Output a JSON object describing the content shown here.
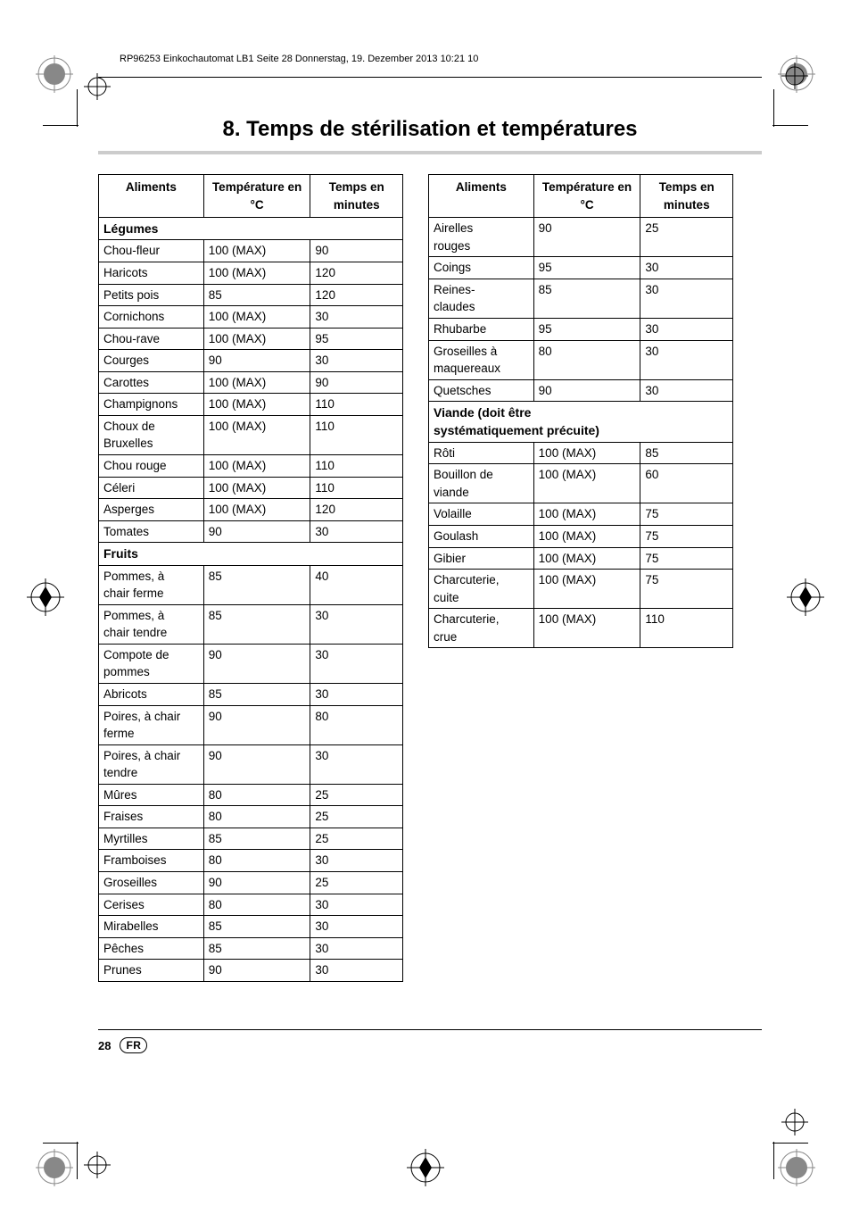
{
  "printmeta": {
    "header": "RP96253 Einkochautomat LB1  Seite 28  Donnerstag, 19. Dezember 2013  10:21 10"
  },
  "title": "8. Temps de stérilisation et températures",
  "columns": {
    "aliments": "Aliments",
    "temperature": "Température\nen °C",
    "temps": "Temps en\nminutes"
  },
  "sections": {
    "legumes": "Légumes",
    "fruits": "Fruits",
    "viande": "Viande (doit être\nsystématiquement précuite)"
  },
  "table_left": [
    {
      "section": "legumes"
    },
    {
      "a": "Chou-fleur",
      "t": "100 (MAX)",
      "m": "90"
    },
    {
      "a": "Haricots",
      "t": "100 (MAX)",
      "m": "120"
    },
    {
      "a": "Petits pois",
      "t": "85",
      "m": "120"
    },
    {
      "a": "Cornichons",
      "t": "100 (MAX)",
      "m": "30"
    },
    {
      "a": "Chou-rave",
      "t": "100 (MAX)",
      "m": "95"
    },
    {
      "a": "Courges",
      "t": "90",
      "m": "30"
    },
    {
      "a": "Carottes",
      "t": "100 (MAX)",
      "m": "90"
    },
    {
      "a": "Champignons",
      "t": "100 (MAX)",
      "m": "110"
    },
    {
      "a": "Choux de\nBruxelles",
      "t": "100 (MAX)",
      "m": "110"
    },
    {
      "a": "Chou rouge",
      "t": "100 (MAX)",
      "m": "110"
    },
    {
      "a": "Céleri",
      "t": "100 (MAX)",
      "m": "110"
    },
    {
      "a": "Asperges",
      "t": "100 (MAX)",
      "m": "120"
    },
    {
      "a": "Tomates",
      "t": "90",
      "m": "30"
    },
    {
      "section": "fruits"
    },
    {
      "a": "Pommes, à\nchair ferme",
      "t": "85",
      "m": "40"
    },
    {
      "a": "Pommes, à\nchair tendre",
      "t": "85",
      "m": "30"
    },
    {
      "a": "Compote de\npommes",
      "t": "90",
      "m": "30"
    },
    {
      "a": "Abricots",
      "t": "85",
      "m": "30"
    },
    {
      "a": "Poires, à chair\nferme",
      "t": "90",
      "m": "80"
    },
    {
      "a": "Poires, à chair\ntendre",
      "t": "90",
      "m": "30"
    },
    {
      "a": "Mûres",
      "t": "80",
      "m": "25"
    },
    {
      "a": "Fraises",
      "t": "80",
      "m": "25"
    },
    {
      "a": "Myrtilles",
      "t": "85",
      "m": "25"
    },
    {
      "a": "Framboises",
      "t": "80",
      "m": "30"
    },
    {
      "a": "Groseilles",
      "t": "90",
      "m": "25"
    },
    {
      "a": "Cerises",
      "t": "80",
      "m": "30"
    },
    {
      "a": "Mirabelles",
      "t": "85",
      "m": "30"
    },
    {
      "a": "Pêches",
      "t": "85",
      "m": "30"
    },
    {
      "a": "Prunes",
      "t": "90",
      "m": "30"
    }
  ],
  "table_right": [
    {
      "a": "Airelles\nrouges",
      "t": "90",
      "m": "25"
    },
    {
      "a": "Coings",
      "t": "95",
      "m": "30"
    },
    {
      "a": "Reines-\nclaudes",
      "t": "85",
      "m": "30"
    },
    {
      "a": "Rhubarbe",
      "t": "95",
      "m": "30"
    },
    {
      "a": "Groseilles à\nmaquereaux",
      "t": "80",
      "m": "30"
    },
    {
      "a": "Quetsches",
      "t": "90",
      "m": "30"
    },
    {
      "section": "viande"
    },
    {
      "a": "Rôti",
      "t": "100 (MAX)",
      "m": "85"
    },
    {
      "a": "Bouillon de\nviande",
      "t": "100 (MAX)",
      "m": "60"
    },
    {
      "a": "Volaille",
      "t": "100 (MAX)",
      "m": "75"
    },
    {
      "a": "Goulash",
      "t": "100 (MAX)",
      "m": "75"
    },
    {
      "a": "Gibier",
      "t": "100 (MAX)",
      "m": "75"
    },
    {
      "a": "Charcuterie,\ncuite",
      "t": "100 (MAX)",
      "m": "75"
    },
    {
      "a": "Charcuterie,\ncrue",
      "t": "100 (MAX)",
      "m": "110"
    }
  ],
  "footer": {
    "page": "28",
    "lang": "FR"
  },
  "colors": {
    "underline": "#cccccc"
  }
}
